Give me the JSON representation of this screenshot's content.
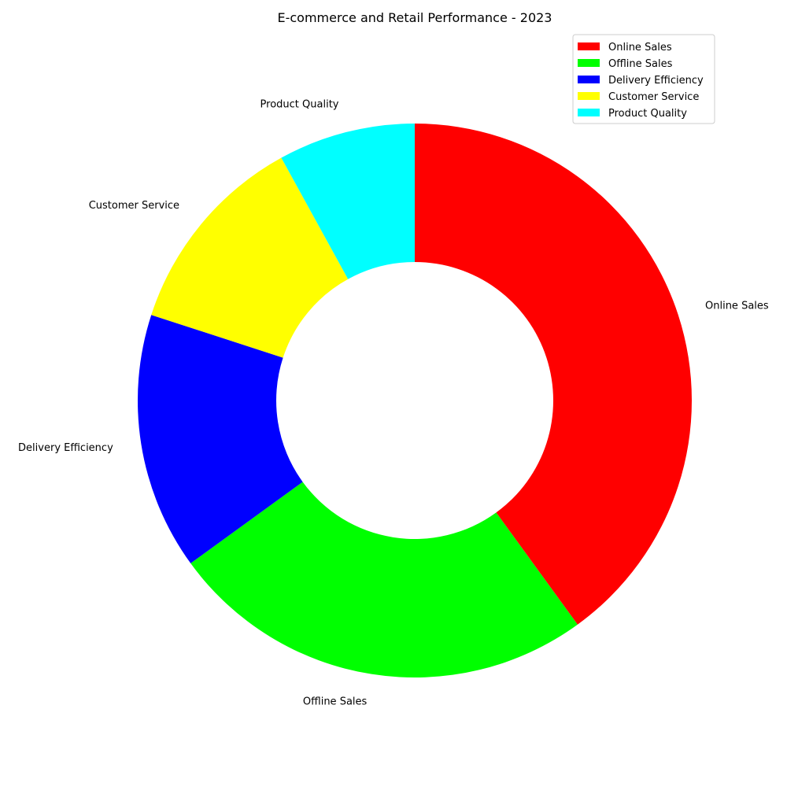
{
  "chart_data": {
    "type": "pie",
    "donut": true,
    "title": "E-commerce and Retail Performance - 2023",
    "categories": [
      "Online Sales",
      "Offline Sales",
      "Delivery Efficiency",
      "Customer Service",
      "Product Quality"
    ],
    "values": [
      40,
      25,
      15,
      12,
      8
    ],
    "colors": [
      "#ff0000",
      "#00ff00",
      "#0000ff",
      "#ffff00",
      "#00ffff"
    ],
    "start_angle": "12 o'clock",
    "direction": "clockwise",
    "legend_position": "top-right"
  }
}
